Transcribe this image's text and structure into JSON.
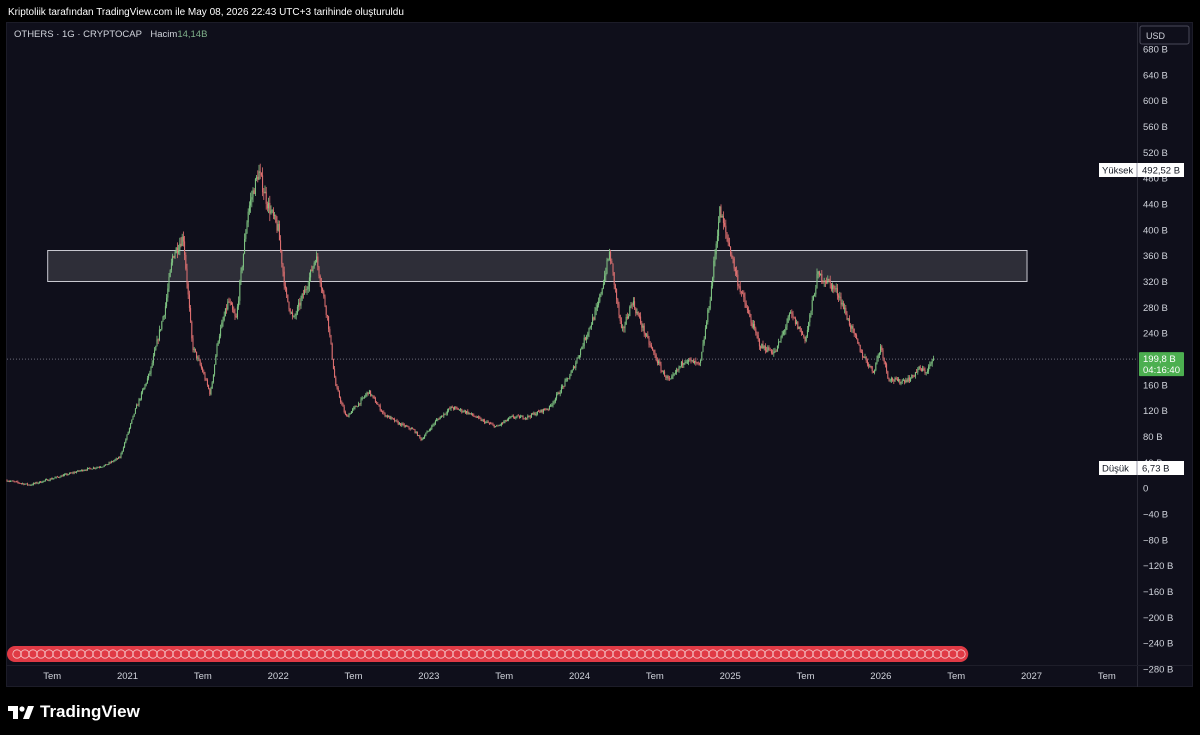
{
  "header": {
    "caption": "Kriptoliik tarafından TradingView.com ile May 08, 2026 22:43 UTC+3 tarihinde oluşturuldu"
  },
  "legend": {
    "symbol": "OTHERS · 1G · CRYPTOCAP",
    "volume_label": "Hacim",
    "volume_value": "14,14B"
  },
  "brand": {
    "name": "TradingView",
    "icon": "tradingview-logo-icon"
  },
  "chart_data": {
    "type": "candlestick",
    "title": "",
    "y_axis": {
      "currency": "USD",
      "ylim": [
        -300,
        720
      ],
      "ticks": [
        680,
        640,
        600,
        560,
        520,
        480,
        440,
        400,
        360,
        320,
        280,
        240,
        200,
        160,
        120,
        80,
        40,
        0,
        -40,
        -80,
        -120,
        -160,
        -200,
        -240,
        -280
      ],
      "tick_labels": [
        "680 B",
        "640 B",
        "600 B",
        "560 B",
        "520 B",
        "480 B",
        "440 B",
        "400 B",
        "360 B",
        "320 B",
        "280 B",
        "240 B",
        "200 B",
        "160 B",
        "120 B",
        "80 B",
        "40 B",
        "0",
        "−40 B",
        "−80 B",
        "−120 B",
        "−160 B",
        "−200 B",
        "−240 B",
        "−280 B"
      ],
      "position": "right"
    },
    "x_axis": {
      "range": [
        2020.2,
        2027.7
      ],
      "ticks": [
        {
          "x": 2020.5,
          "label": "Tem"
        },
        {
          "x": 2021.0,
          "label": "2021"
        },
        {
          "x": 2021.5,
          "label": "Tem"
        },
        {
          "x": 2022.0,
          "label": "2022"
        },
        {
          "x": 2022.5,
          "label": "Tem"
        },
        {
          "x": 2023.0,
          "label": "2023"
        },
        {
          "x": 2023.5,
          "label": "Tem"
        },
        {
          "x": 2024.0,
          "label": "2024"
        },
        {
          "x": 2024.5,
          "label": "Tem"
        },
        {
          "x": 2025.0,
          "label": "2025"
        },
        {
          "x": 2025.5,
          "label": "Tem"
        },
        {
          "x": 2026.0,
          "label": "2026"
        },
        {
          "x": 2026.5,
          "label": "Tem"
        },
        {
          "x": 2027.0,
          "label": "2027"
        },
        {
          "x": 2027.5,
          "label": "Tem"
        }
      ]
    },
    "series": [
      {
        "kind": "candles",
        "interval": "1 day",
        "unit": "B USD",
        "key_points": [
          [
            2020.2,
            12
          ],
          [
            2020.35,
            5
          ],
          [
            2020.7,
            28
          ],
          [
            2020.85,
            35
          ],
          [
            2020.95,
            48
          ],
          [
            2021.05,
            120
          ],
          [
            2021.15,
            180
          ],
          [
            2021.25,
            280
          ],
          [
            2021.3,
            360
          ],
          [
            2021.37,
            390
          ],
          [
            2021.43,
            220
          ],
          [
            2021.5,
            180
          ],
          [
            2021.55,
            145
          ],
          [
            2021.6,
            230
          ],
          [
            2021.67,
            290
          ],
          [
            2021.72,
            260
          ],
          [
            2021.8,
            430
          ],
          [
            2021.87,
            490
          ],
          [
            2021.93,
            440
          ],
          [
            2022.0,
            400
          ],
          [
            2022.05,
            300
          ],
          [
            2022.1,
            260
          ],
          [
            2022.2,
            320
          ],
          [
            2022.25,
            360
          ],
          [
            2022.33,
            260
          ],
          [
            2022.38,
            160
          ],
          [
            2022.45,
            110
          ],
          [
            2022.55,
            135
          ],
          [
            2022.6,
            150
          ],
          [
            2022.7,
            115
          ],
          [
            2022.8,
            100
          ],
          [
            2022.9,
            90
          ],
          [
            2022.95,
            75
          ],
          [
            2023.05,
            105
          ],
          [
            2023.15,
            125
          ],
          [
            2023.25,
            118
          ],
          [
            2023.35,
            105
          ],
          [
            2023.45,
            95
          ],
          [
            2023.55,
            110
          ],
          [
            2023.65,
            110
          ],
          [
            2023.8,
            125
          ],
          [
            2023.95,
            180
          ],
          [
            2024.05,
            240
          ],
          [
            2024.12,
            280
          ],
          [
            2024.2,
            365
          ],
          [
            2024.28,
            240
          ],
          [
            2024.35,
            290
          ],
          [
            2024.45,
            230
          ],
          [
            2024.55,
            180
          ],
          [
            2024.6,
            165
          ],
          [
            2024.7,
            200
          ],
          [
            2024.8,
            190
          ],
          [
            2024.87,
            300
          ],
          [
            2024.93,
            430
          ],
          [
            2025.0,
            370
          ],
          [
            2025.05,
            320
          ],
          [
            2025.12,
            270
          ],
          [
            2025.2,
            220
          ],
          [
            2025.3,
            210
          ],
          [
            2025.4,
            270
          ],
          [
            2025.5,
            230
          ],
          [
            2025.58,
            330
          ],
          [
            2025.65,
            320
          ],
          [
            2025.72,
            300
          ],
          [
            2025.8,
            250
          ],
          [
            2025.87,
            210
          ],
          [
            2025.95,
            180
          ],
          [
            2026.0,
            220
          ],
          [
            2026.05,
            170
          ],
          [
            2026.12,
            165
          ],
          [
            2026.2,
            170
          ],
          [
            2026.25,
            185
          ],
          [
            2026.3,
            180
          ],
          [
            2026.35,
            200
          ]
        ]
      }
    ],
    "zone": {
      "x": [
        2020.47,
        2026.97
      ],
      "y": [
        320,
        368
      ],
      "label": ""
    },
    "last_price": {
      "value": 199.8,
      "label": "199,8 B",
      "countdown": "04:16:40",
      "color": "#4caf50"
    },
    "high": {
      "label": "Yüksek",
      "value": "492,52 B"
    },
    "low": {
      "label": "Düşük",
      "value": "6,73 B"
    },
    "events_strip": {
      "x": [
        2020.2,
        2026.58
      ],
      "color": "#e03a45"
    },
    "colors": {
      "up": "#81c784",
      "down": "#e57373",
      "background": "#0f0f1b",
      "text": "#d1d4dc"
    },
    "grid": false
  }
}
